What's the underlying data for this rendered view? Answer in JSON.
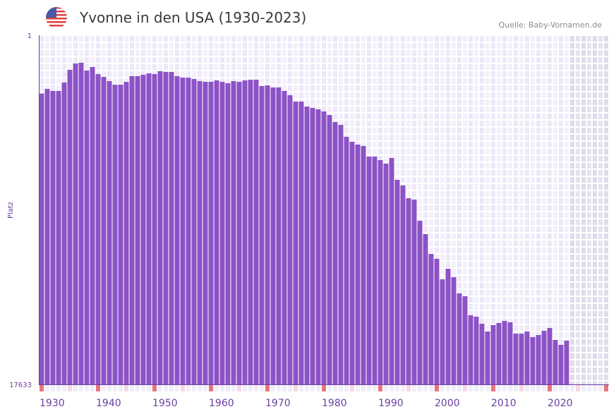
{
  "header": {
    "title": "Yvonne in den USA (1930-2023)",
    "source": "Quelle: Baby-Vornamen.de",
    "flag_icon": "us-flag-icon"
  },
  "colors": {
    "bar": "#8c52c6",
    "axis": "#6a3fa0",
    "decade_marker": "#e8767c",
    "half_decade_marker": "#f6d8e0",
    "future_shade": "#e3e0ec"
  },
  "chart_data": {
    "type": "bar",
    "title": "Yvonne in den USA (1930-2023)",
    "xlabel": "",
    "ylabel": "Platz",
    "y_ticks": [
      "1",
      "17633"
    ],
    "ylim": [
      1,
      17633
    ],
    "y_inverted": true,
    "x_range": [
      1930,
      2030
    ],
    "x_ticks": [
      "1930",
      "1940",
      "1950",
      "1960",
      "1970",
      "1980",
      "1990",
      "2000",
      "2010",
      "2020"
    ],
    "grid": true,
    "x": [
      1930,
      1931,
      1932,
      1933,
      1934,
      1935,
      1936,
      1937,
      1938,
      1939,
      1940,
      1941,
      1942,
      1943,
      1944,
      1945,
      1946,
      1947,
      1948,
      1949,
      1950,
      1951,
      1952,
      1953,
      1954,
      1955,
      1956,
      1957,
      1958,
      1959,
      1960,
      1961,
      1962,
      1963,
      1964,
      1965,
      1966,
      1967,
      1968,
      1969,
      1970,
      1971,
      1972,
      1973,
      1974,
      1975,
      1976,
      1977,
      1978,
      1979,
      1980,
      1981,
      1982,
      1983,
      1984,
      1985,
      1986,
      1987,
      1988,
      1989,
      1990,
      1991,
      1992,
      1993,
      1994,
      1995,
      1996,
      1997,
      1998,
      1999,
      2000,
      2001,
      2002,
      2003,
      2004,
      2005,
      2006,
      2007,
      2008,
      2009,
      2010,
      2011,
      2012,
      2013,
      2014,
      2015,
      2016,
      2017,
      2018,
      2019,
      2020,
      2021,
      2022,
      2023
    ],
    "values": [
      492,
      416,
      449,
      449,
      323,
      173,
      115,
      109,
      180,
      146,
      218,
      251,
      304,
      353,
      353,
      314,
      242,
      242,
      226,
      210,
      218,
      187,
      195,
      195,
      242,
      259,
      259,
      277,
      304,
      314,
      314,
      295,
      314,
      333,
      304,
      314,
      295,
      286,
      286,
      373,
      363,
      394,
      394,
      449,
      520,
      636,
      636,
      734,
      764,
      793,
      840,
      919,
      1089,
      1161,
      1492,
      1641,
      1729,
      1774,
      2129,
      2129,
      2255,
      2384,
      2179,
      3024,
      3265,
      3841,
      3907,
      4977,
      5723,
      6917,
      7231,
      8616,
      7885,
      8466,
      9640,
      9853,
      11341,
      11458,
      12039,
      12695,
      12156,
      11978,
      11804,
      11920,
      12875,
      12875,
      12695,
      13181,
      12999,
      12635,
      12394,
      13429,
      13870,
      13491
    ]
  }
}
